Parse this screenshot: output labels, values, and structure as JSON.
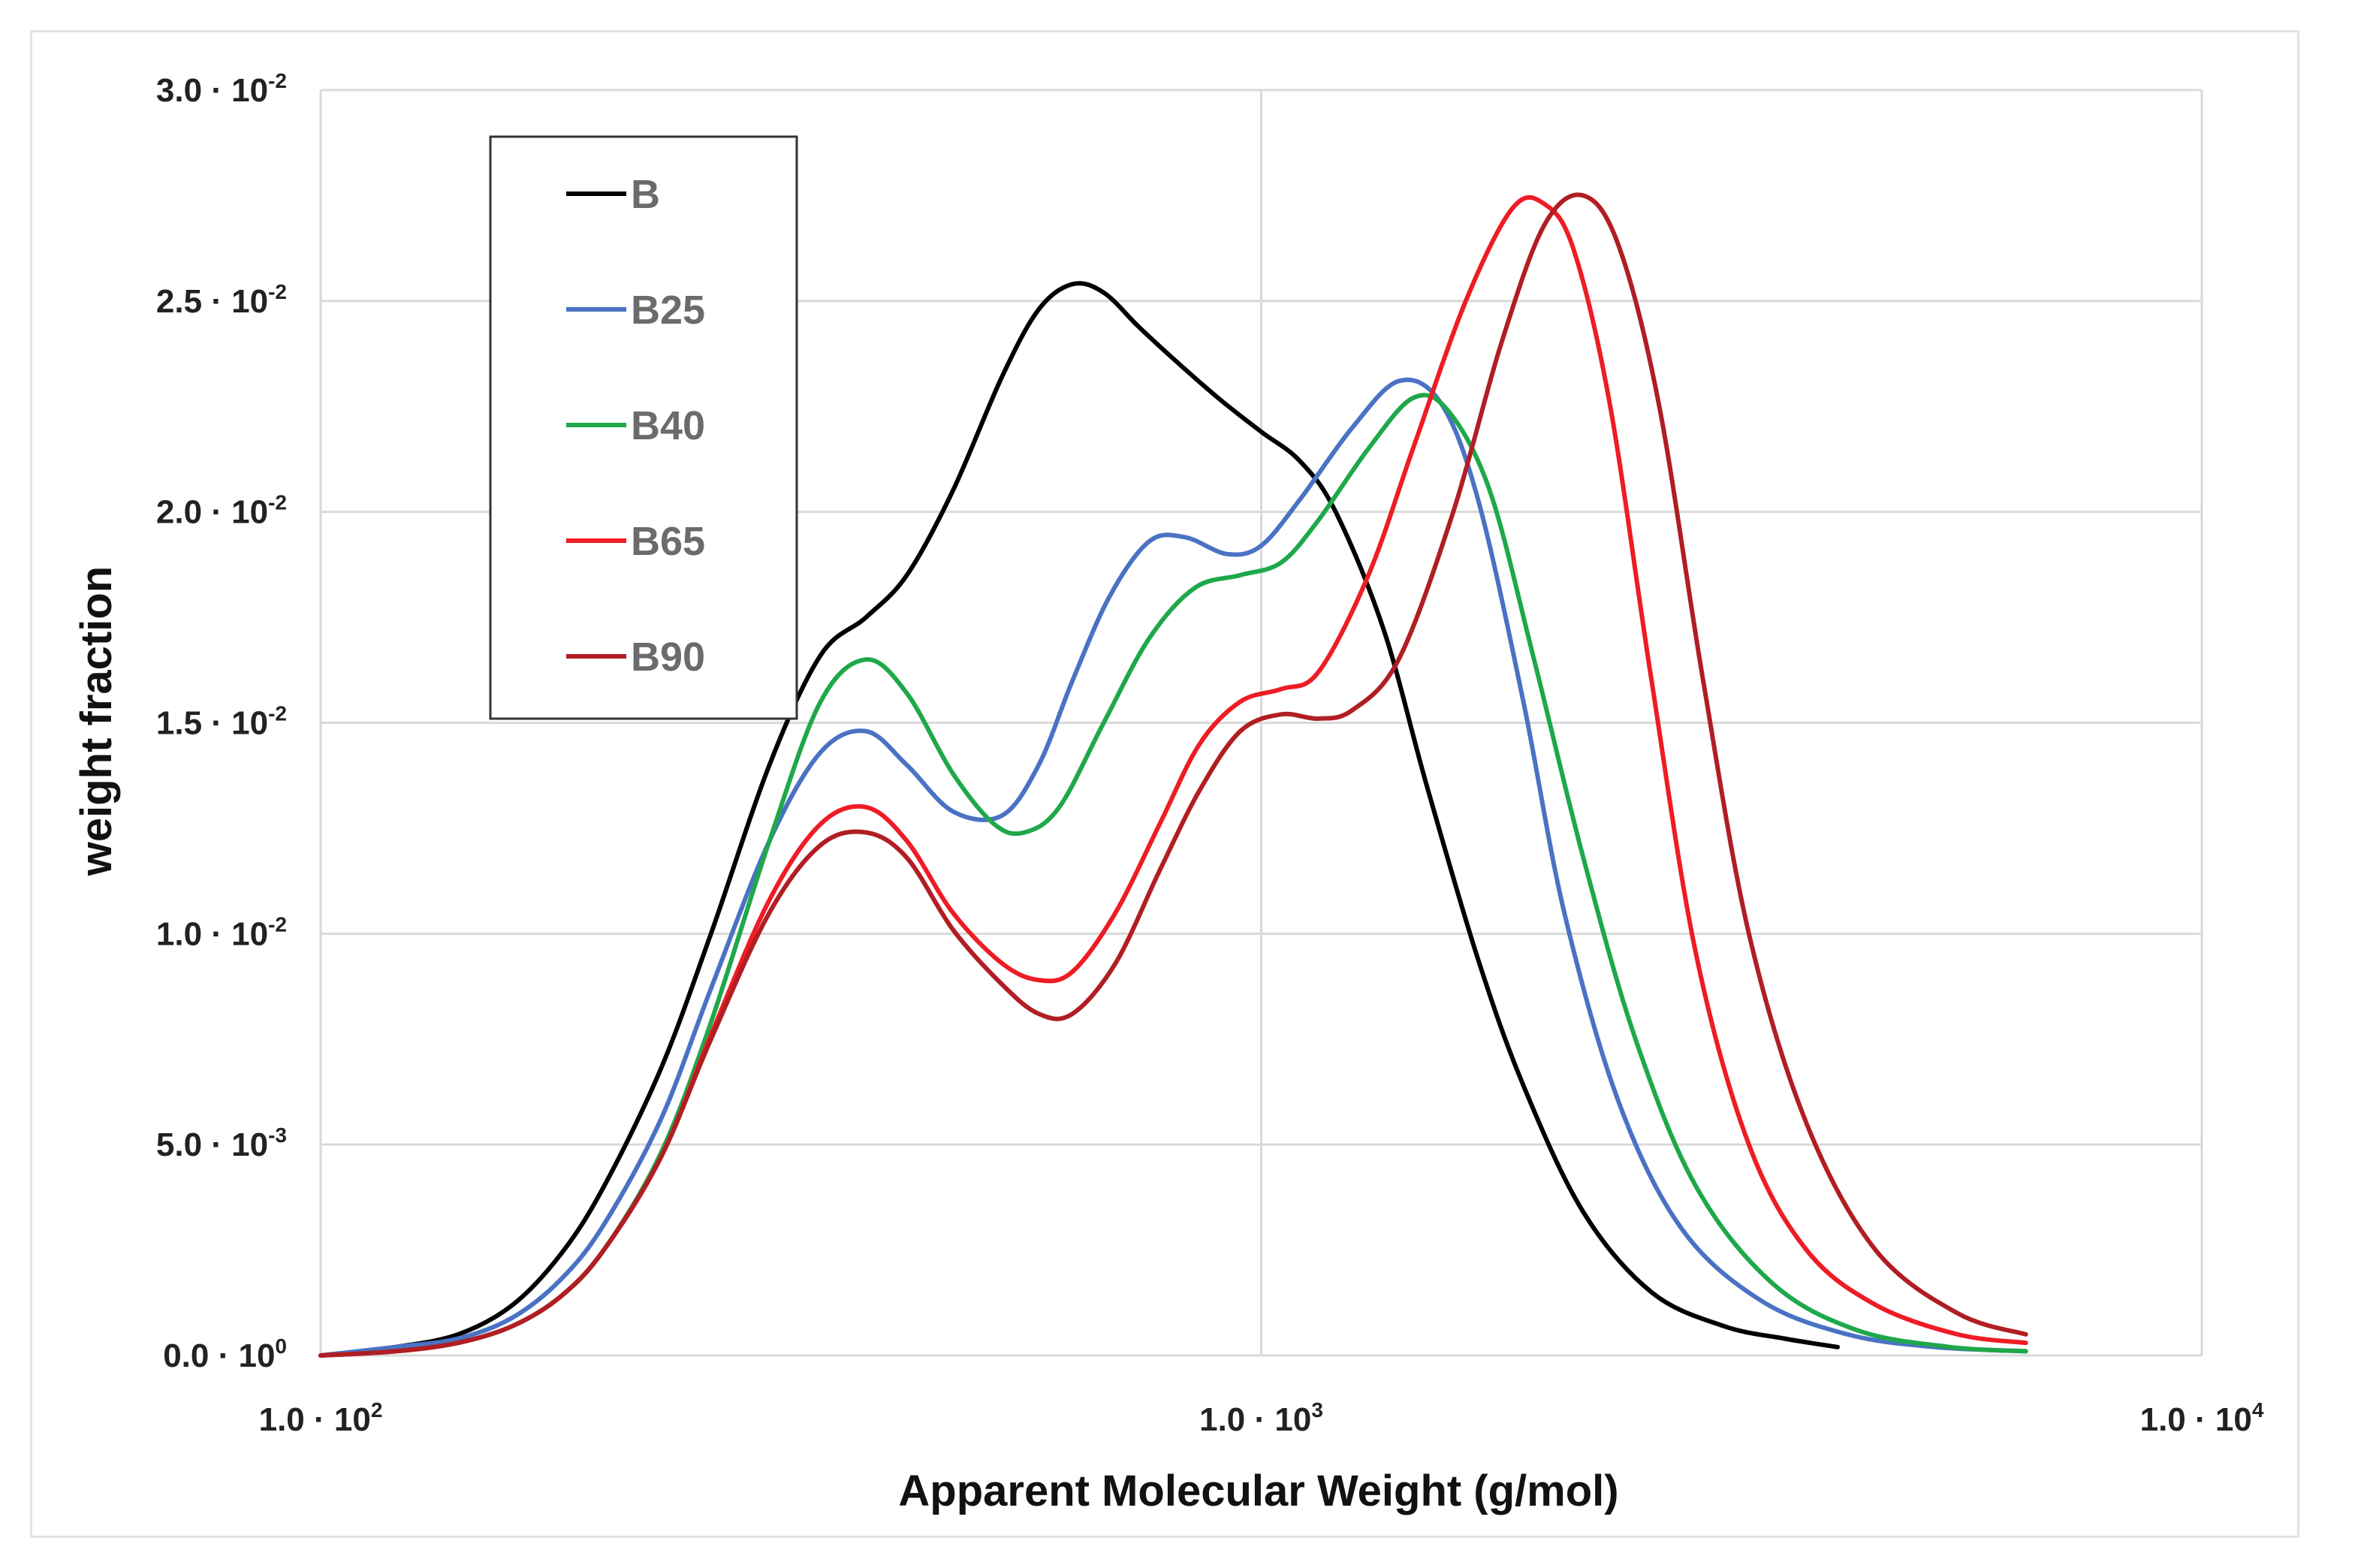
{
  "chart_data": {
    "type": "line",
    "title": "",
    "xlabel": "Apparent Molecular Weight (g/mol)",
    "ylabel": "weight fraction",
    "xscale": "log",
    "xlim": [
      100,
      10000
    ],
    "ylim": [
      0,
      0.03
    ],
    "grid": true,
    "legend_position": "top-left",
    "x_ticks": [
      {
        "value": 100,
        "base": "1.0 · 10",
        "exp": "2"
      },
      {
        "value": 1000,
        "base": "1.0 · 10",
        "exp": "3"
      },
      {
        "value": 10000,
        "base": "1.0 · 10",
        "exp": "4"
      }
    ],
    "y_ticks": [
      {
        "value": 0.0,
        "base": "0.0 · 10",
        "exp": "0"
      },
      {
        "value": 0.005,
        "base": "5.0 · 10",
        "exp": "-3"
      },
      {
        "value": 0.01,
        "base": "1.0 · 10",
        "exp": "-2"
      },
      {
        "value": 0.015,
        "base": "1.5 · 10",
        "exp": "-2"
      },
      {
        "value": 0.02,
        "base": "2.0 · 10",
        "exp": "-2"
      },
      {
        "value": 0.025,
        "base": "2.5 · 10",
        "exp": "-2"
      },
      {
        "value": 0.03,
        "base": "3.0 · 10",
        "exp": "-2"
      }
    ],
    "series": [
      {
        "name": "B",
        "color": "#000000",
        "points": [
          [
            100,
            0.0
          ],
          [
            120,
            0.0002
          ],
          [
            140,
            0.0005
          ],
          [
            160,
            0.0012
          ],
          [
            180,
            0.0024
          ],
          [
            200,
            0.004
          ],
          [
            230,
            0.0068
          ],
          [
            260,
            0.01
          ],
          [
            300,
            0.014
          ],
          [
            340,
            0.0166
          ],
          [
            380,
            0.0175
          ],
          [
            420,
            0.0185
          ],
          [
            470,
            0.0205
          ],
          [
            530,
            0.0232
          ],
          [
            580,
            0.0248
          ],
          [
            630,
            0.0254
          ],
          [
            680,
            0.0252
          ],
          [
            740,
            0.0244
          ],
          [
            800,
            0.0237
          ],
          [
            900,
            0.0227
          ],
          [
            1000,
            0.0219
          ],
          [
            1100,
            0.0212
          ],
          [
            1200,
            0.02
          ],
          [
            1350,
            0.0172
          ],
          [
            1500,
            0.0135
          ],
          [
            1700,
            0.0094
          ],
          [
            1900,
            0.0064
          ],
          [
            2200,
            0.0034
          ],
          [
            2600,
            0.0015
          ],
          [
            3100,
            0.0007
          ],
          [
            3600,
            0.0004
          ],
          [
            4100,
            0.0002
          ]
        ]
      },
      {
        "name": "B25",
        "color": "#4a72c4",
        "points": [
          [
            100,
            0.0
          ],
          [
            120,
            0.0002
          ],
          [
            140,
            0.0004
          ],
          [
            160,
            0.0009
          ],
          [
            180,
            0.0018
          ],
          [
            200,
            0.0031
          ],
          [
            230,
            0.0056
          ],
          [
            260,
            0.0087
          ],
          [
            300,
            0.0122
          ],
          [
            340,
            0.0143
          ],
          [
            380,
            0.0148
          ],
          [
            420,
            0.014
          ],
          [
            470,
            0.0129
          ],
          [
            530,
            0.0128
          ],
          [
            580,
            0.014
          ],
          [
            630,
            0.016
          ],
          [
            690,
            0.018
          ],
          [
            760,
            0.0193
          ],
          [
            830,
            0.0194
          ],
          [
            920,
            0.019
          ],
          [
            1000,
            0.0192
          ],
          [
            1100,
            0.0203
          ],
          [
            1250,
            0.022
          ],
          [
            1400,
            0.0231
          ],
          [
            1550,
            0.0226
          ],
          [
            1700,
            0.0203
          ],
          [
            1900,
            0.0155
          ],
          [
            2100,
            0.0105
          ],
          [
            2400,
            0.006
          ],
          [
            2800,
            0.003
          ],
          [
            3400,
            0.0013
          ],
          [
            4200,
            0.0005
          ],
          [
            5200,
            0.0002
          ],
          [
            6500,
            0.0001
          ]
        ]
      },
      {
        "name": "B40",
        "color": "#1fa84a",
        "points": [
          [
            100,
            0.0
          ],
          [
            120,
            0.0001
          ],
          [
            140,
            0.0003
          ],
          [
            160,
            0.0007
          ],
          [
            180,
            0.0014
          ],
          [
            200,
            0.0025
          ],
          [
            230,
            0.0048
          ],
          [
            260,
            0.0079
          ],
          [
            300,
            0.0122
          ],
          [
            340,
            0.0155
          ],
          [
            380,
            0.0165
          ],
          [
            420,
            0.0157
          ],
          [
            470,
            0.0138
          ],
          [
            520,
            0.0126
          ],
          [
            560,
            0.0124
          ],
          [
            610,
            0.013
          ],
          [
            680,
            0.015
          ],
          [
            760,
            0.017
          ],
          [
            850,
            0.0182
          ],
          [
            950,
            0.0185
          ],
          [
            1050,
            0.0188
          ],
          [
            1150,
            0.0198
          ],
          [
            1300,
            0.0215
          ],
          [
            1450,
            0.0227
          ],
          [
            1580,
            0.0224
          ],
          [
            1750,
            0.0205
          ],
          [
            1950,
            0.0165
          ],
          [
            2200,
            0.0118
          ],
          [
            2500,
            0.0075
          ],
          [
            2900,
            0.004
          ],
          [
            3500,
            0.0017
          ],
          [
            4300,
            0.0006
          ],
          [
            5400,
            0.0002
          ],
          [
            6500,
            0.0001
          ]
        ]
      },
      {
        "name": "B65",
        "color": "#ee1c24",
        "points": [
          [
            100,
            0.0
          ],
          [
            120,
            0.0001
          ],
          [
            140,
            0.0003
          ],
          [
            160,
            0.0007
          ],
          [
            180,
            0.0014
          ],
          [
            200,
            0.0025
          ],
          [
            230,
            0.0047
          ],
          [
            260,
            0.0076
          ],
          [
            300,
            0.0108
          ],
          [
            340,
            0.0126
          ],
          [
            380,
            0.013
          ],
          [
            420,
            0.0122
          ],
          [
            470,
            0.0105
          ],
          [
            530,
            0.0093
          ],
          [
            580,
            0.0089
          ],
          [
            630,
            0.0091
          ],
          [
            700,
            0.0105
          ],
          [
            780,
            0.0126
          ],
          [
            860,
            0.0145
          ],
          [
            950,
            0.0155
          ],
          [
            1050,
            0.0158
          ],
          [
            1150,
            0.0162
          ],
          [
            1300,
            0.0185
          ],
          [
            1450,
            0.0215
          ],
          [
            1650,
            0.025
          ],
          [
            1850,
            0.0272
          ],
          [
            2000,
            0.0273
          ],
          [
            2150,
            0.0262
          ],
          [
            2350,
            0.0225
          ],
          [
            2600,
            0.016
          ],
          [
            2900,
            0.0095
          ],
          [
            3300,
            0.005
          ],
          [
            3800,
            0.0025
          ],
          [
            4500,
            0.0012
          ],
          [
            5500,
            0.0005
          ],
          [
            6500,
            0.0003
          ]
        ]
      },
      {
        "name": "B90",
        "color": "#b01e23",
        "points": [
          [
            100,
            0.0
          ],
          [
            120,
            0.0001
          ],
          [
            140,
            0.0003
          ],
          [
            160,
            0.0007
          ],
          [
            180,
            0.0014
          ],
          [
            200,
            0.0025
          ],
          [
            230,
            0.0047
          ],
          [
            260,
            0.0075
          ],
          [
            300,
            0.0105
          ],
          [
            340,
            0.0121
          ],
          [
            380,
            0.0124
          ],
          [
            420,
            0.0118
          ],
          [
            470,
            0.0101
          ],
          [
            530,
            0.0088
          ],
          [
            580,
            0.0081
          ],
          [
            630,
            0.0081
          ],
          [
            700,
            0.0093
          ],
          [
            780,
            0.0115
          ],
          [
            860,
            0.0134
          ],
          [
            950,
            0.0148
          ],
          [
            1050,
            0.0152
          ],
          [
            1150,
            0.0151
          ],
          [
            1250,
            0.0153
          ],
          [
            1400,
            0.0165
          ],
          [
            1600,
            0.02
          ],
          [
            1800,
            0.024
          ],
          [
            2000,
            0.0268
          ],
          [
            2200,
            0.0275
          ],
          [
            2400,
            0.0263
          ],
          [
            2650,
            0.0225
          ],
          [
            2950,
            0.016
          ],
          [
            3300,
            0.01
          ],
          [
            3800,
            0.0055
          ],
          [
            4500,
            0.0025
          ],
          [
            5500,
            0.001
          ],
          [
            6500,
            0.0005
          ]
        ]
      }
    ]
  }
}
